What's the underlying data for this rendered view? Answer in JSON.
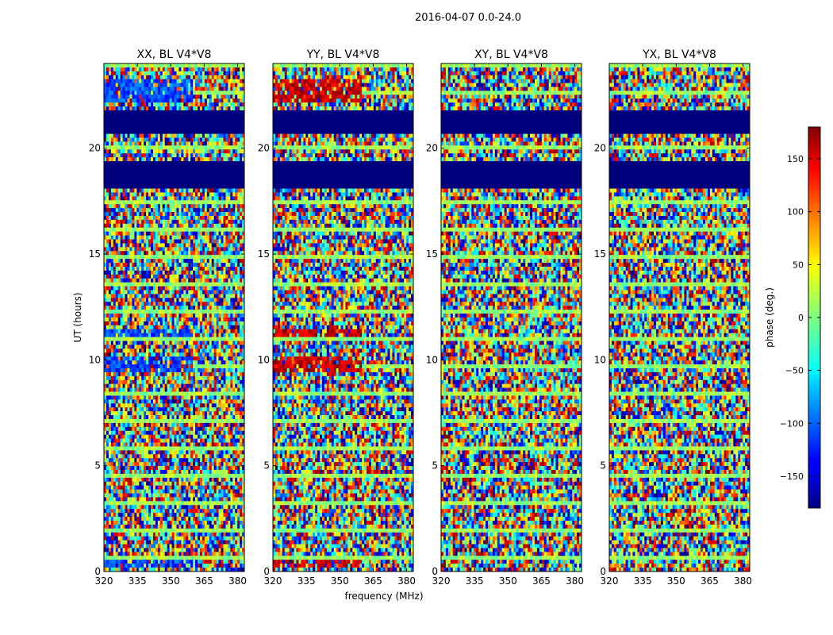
{
  "figure": {
    "suptitle": "2016-04-07 0.0-24.0"
  },
  "chart_data": {
    "type": "heatmap",
    "xlabel": "frequency (MHz)",
    "ylabel": "UT (hours)",
    "xlim": [
      320,
      383
    ],
    "ylim": [
      0,
      24
    ],
    "x_ticks": [
      "320",
      "335",
      "350",
      "365",
      "380"
    ],
    "y_ticks": [
      "0",
      "5",
      "10",
      "15",
      "20"
    ],
    "panels": [
      {
        "title": "XX, BL V4*V8"
      },
      {
        "title": "YY, BL V4*V8"
      },
      {
        "title": "XY, BL V4*V8"
      },
      {
        "title": "YX, BL V4*V8"
      }
    ],
    "colorbar": {
      "label": "phase (deg.)",
      "range": [
        -180,
        180
      ],
      "ticks": [
        "150",
        "100",
        "50",
        "0",
        "−50",
        "−100",
        "−150"
      ],
      "colormap": "jet"
    }
  }
}
